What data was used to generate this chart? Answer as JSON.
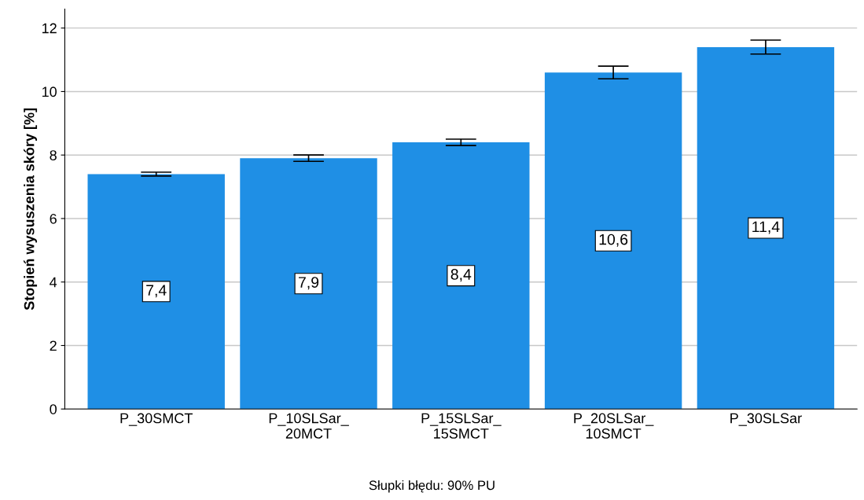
{
  "chart_data": {
    "type": "bar",
    "ylabel": "Stopień wysuszenia skóry [%]",
    "categories": [
      "P_30SMCT",
      "P_10SLSar_\n20MCT",
      "P_15SLSar_\n15SMCT",
      "P_20SLSar_\n10SMCT",
      "P_30SLSar"
    ],
    "values": [
      7.4,
      7.9,
      8.4,
      10.6,
      11.4
    ],
    "errors": [
      0.06,
      0.1,
      0.1,
      0.2,
      0.22
    ],
    "value_labels": [
      "7,4",
      "7,9",
      "8,4",
      "10,6",
      "11,4"
    ],
    "color": "#1f8fe5",
    "ylim": [
      0,
      12.6
    ],
    "yticks": [
      0,
      2,
      4,
      6,
      8,
      10,
      12
    ],
    "grid": "y",
    "annotations": [
      "Słupki błędu: 90% PU"
    ]
  }
}
